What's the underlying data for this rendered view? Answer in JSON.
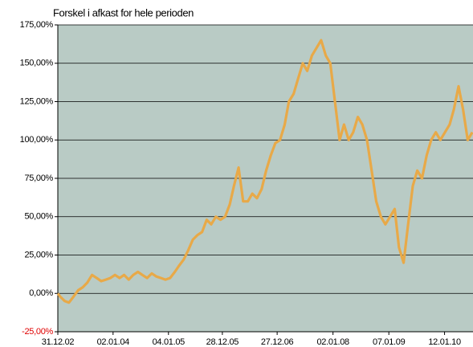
{
  "chart_data": {
    "type": "line",
    "title": "Forskel i afkast for hele perioden",
    "x": [
      "31.12.02",
      "15.01.03",
      "15.02.03",
      "15.03.03",
      "15.04.03",
      "15.05.03",
      "15.06.03",
      "15.07.03",
      "15.08.03",
      "15.09.03",
      "15.10.03",
      "15.11.03",
      "15.12.03",
      "15.01.04",
      "15.02.04",
      "15.03.04",
      "15.04.04",
      "15.05.04",
      "15.06.04",
      "15.07.04",
      "15.08.04",
      "15.09.04",
      "15.10.04",
      "15.11.04",
      "15.12.04",
      "15.01.05",
      "15.02.05",
      "15.03.05",
      "15.04.05",
      "15.05.05",
      "15.06.05",
      "15.07.05",
      "15.08.05",
      "15.09.05",
      "15.10.05",
      "15.11.05",
      "15.12.05",
      "15.01.06",
      "15.02.06",
      "15.03.06",
      "15.04.06",
      "15.05.06",
      "15.06.06",
      "15.07.06",
      "15.08.06",
      "15.09.06",
      "15.10.06",
      "15.11.06",
      "15.12.06",
      "15.01.07",
      "15.02.07",
      "15.03.07",
      "15.04.07",
      "15.05.07",
      "15.06.07",
      "15.07.07",
      "15.08.07",
      "15.09.07",
      "15.10.07",
      "15.11.07",
      "15.12.07",
      "15.01.08",
      "15.02.08",
      "15.03.08",
      "15.04.08",
      "15.05.08",
      "15.06.08",
      "15.07.08",
      "15.08.08",
      "15.09.08",
      "15.10.08",
      "15.11.08",
      "15.12.08",
      "15.01.09",
      "15.02.09",
      "15.03.09",
      "15.04.09",
      "15.05.09",
      "15.06.09",
      "15.07.09",
      "15.08.09",
      "15.09.09",
      "15.10.09",
      "15.11.09",
      "15.12.09",
      "15.01.10",
      "15.02.10",
      "15.03.10",
      "15.04.10",
      "15.05.10",
      "15.06.10",
      "15.07.10"
    ],
    "series": [
      {
        "color": "#e8a948",
        "values": [
          0,
          -2,
          -5,
          -6,
          -2,
          2,
          4,
          7,
          12,
          10,
          8,
          9,
          10,
          12,
          10,
          12,
          9,
          12,
          14,
          12,
          10,
          13,
          11,
          10,
          9,
          10,
          14,
          18,
          22,
          28,
          35,
          38,
          40,
          48,
          45,
          50,
          48,
          50,
          58,
          70,
          82,
          60,
          60,
          65,
          62,
          68,
          80,
          90,
          98,
          100,
          110,
          125,
          130,
          140,
          150,
          145,
          155,
          160,
          165,
          155,
          150,
          125,
          100,
          110,
          100,
          105,
          115,
          110,
          100,
          80,
          60,
          50,
          45,
          50,
          55,
          30,
          20,
          45,
          70,
          80,
          75,
          90,
          100,
          105,
          100,
          105,
          110,
          120,
          135,
          120,
          100,
          105
        ]
      }
    ],
    "xlim": [
      "31.12.02",
      "20.07.10"
    ],
    "xticks": [
      "31.12.02",
      "02.01.04",
      "04.01.05",
      "28.12.05",
      "27.12.06",
      "02.01.08",
      "07.01.09",
      "12.01.10"
    ],
    "ylim": [
      -25,
      175
    ],
    "yticks": [
      {
        "value": -25,
        "label": "-25,00%"
      },
      {
        "value": 0,
        "label": "0,00%"
      },
      {
        "value": 25,
        "label": "25,00%"
      },
      {
        "value": 50,
        "label": "50,00%"
      },
      {
        "value": 75,
        "label": "75,00%"
      },
      {
        "value": 100,
        "label": "100,00%"
      },
      {
        "value": 125,
        "label": "125,00%"
      },
      {
        "value": 150,
        "label": "150,00%"
      },
      {
        "value": 175,
        "label": "175,00%"
      }
    ],
    "grid": true,
    "plot_background": "#b9cbc5"
  }
}
